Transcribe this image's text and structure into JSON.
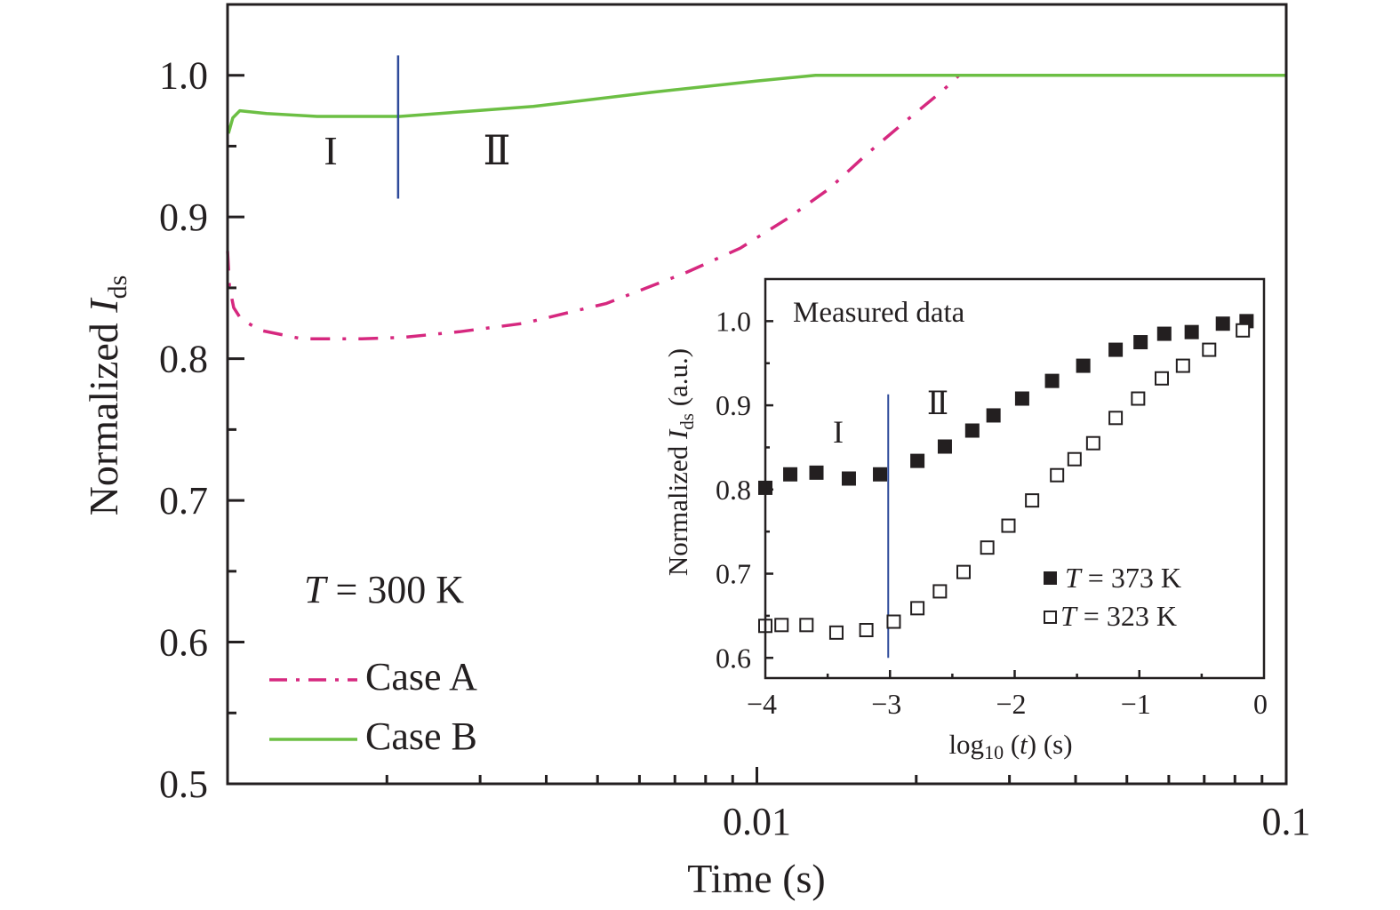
{
  "chart_data": [
    {
      "id": "main",
      "type": "line",
      "xscale": "log",
      "xlabel": "Time (s)",
      "ylabel": "Normalized I_ds",
      "ylabel_parts": {
        "main": "Normalized ",
        "italic": "I",
        "sub": "ds"
      },
      "xlim": [
        0.001,
        0.1
      ],
      "ylim": [
        0.5,
        1.05
      ],
      "x_ticks": [
        {
          "value": 0.001,
          "label": ""
        },
        {
          "value": 0.01,
          "label": "0.01"
        },
        {
          "value": 0.1,
          "label": "0.1"
        }
      ],
      "y_ticks": [
        {
          "value": 0.5,
          "label": "0.5"
        },
        {
          "value": 0.6,
          "label": "0.6"
        },
        {
          "value": 0.7,
          "label": "0.7"
        },
        {
          "value": 0.8,
          "label": "0.8"
        },
        {
          "value": 0.9,
          "label": "0.9"
        },
        {
          "value": 1.0,
          "label": "1.0"
        }
      ],
      "y_minor_ticks": [
        0.55,
        0.65,
        0.75,
        0.85,
        0.95
      ],
      "annotation": {
        "italic": "T",
        "text": " = 300 K"
      },
      "regions": [
        {
          "label": "I"
        },
        {
          "label": "Ⅱ"
        }
      ],
      "divider": {
        "x": 0.0021,
        "y_range": [
          0.913,
          1.014
        ],
        "color": "#2e4a9a"
      },
      "legend_position": "bottom-left",
      "series": [
        {
          "name": "Case A",
          "style": "dash-dot",
          "color": "#d6287f",
          "points": [
            [
              0.001,
              0.876
            ],
            [
              0.001008,
              0.851
            ],
            [
              0.001027,
              0.836
            ],
            [
              0.00106,
              0.828
            ],
            [
              0.001154,
              0.82
            ],
            [
              0.001383,
              0.814
            ],
            [
              0.001792,
              0.814
            ],
            [
              0.00214,
              0.815
            ],
            [
              0.00274,
              0.819
            ],
            [
              0.00363,
              0.825
            ],
            [
              0.0052,
              0.839
            ],
            [
              0.00737,
              0.861
            ],
            [
              0.0093,
              0.878
            ],
            [
              0.01143,
              0.899
            ],
            [
              0.0137,
              0.92
            ],
            [
              0.0162,
              0.945
            ],
            [
              0.01915,
              0.968
            ],
            [
              0.0224,
              0.989
            ],
            [
              0.0241,
              1.0
            ],
            [
              0.1,
              1.0
            ]
          ]
        },
        {
          "name": "Case B",
          "style": "solid",
          "color": "#6cbf44",
          "points": [
            [
              0.001004,
              0.959
            ],
            [
              0.001023,
              0.97
            ],
            [
              0.001055,
              0.975
            ],
            [
              0.001185,
              0.973
            ],
            [
              0.001477,
              0.971
            ],
            [
              0.002117,
              0.971
            ],
            [
              0.00378,
              0.978
            ],
            [
              0.00633,
              0.988
            ],
            [
              0.01,
              0.996
            ],
            [
              0.0129,
              1.0
            ],
            [
              0.1,
              1.0
            ]
          ]
        }
      ]
    },
    {
      "id": "inset",
      "type": "scatter",
      "title": "Measured data",
      "xlabel": "log10 (t) (s)",
      "xlabel_parts": {
        "pre": "log",
        "sub": "10",
        "mid": " (",
        "italic": "t",
        "post": ") (s)"
      },
      "ylabel": "Normalized I_ds (a.u.)",
      "ylabel_parts": {
        "main": "Normalized ",
        "italic": "I",
        "sub": "ds",
        "post": " (a.u.)"
      },
      "xlim": [
        -4,
        0
      ],
      "ylim": [
        0.576,
        1.05
      ],
      "x_ticks": [
        {
          "value": -4,
          "label": "−4"
        },
        {
          "value": -3,
          "label": "−3"
        },
        {
          "value": -2,
          "label": "−2"
        },
        {
          "value": -1,
          "label": "−1"
        },
        {
          "value": 0,
          "label": "0"
        }
      ],
      "x_minor_ticks": [
        -3.5,
        -2.5,
        -1.5,
        -0.5
      ],
      "y_ticks": [
        {
          "value": 0.6,
          "label": "0.6"
        },
        {
          "value": 0.7,
          "label": "0.7"
        },
        {
          "value": 0.8,
          "label": "0.8"
        },
        {
          "value": 0.9,
          "label": "0.9"
        },
        {
          "value": 1.0,
          "label": "1.0"
        }
      ],
      "y_minor_ticks": [
        0.65,
        0.75,
        0.85,
        0.95
      ],
      "regions": [
        {
          "label": "I"
        },
        {
          "label": "Ⅱ"
        }
      ],
      "divider": {
        "x": -3.0,
        "y_range": [
          0.6,
          0.913
        ],
        "color": "#2e4a9a"
      },
      "legend_position": "bottom-right",
      "series": [
        {
          "name": "T = 373 K",
          "legend_parts": {
            "italic": "T",
            "text": " = 373 K"
          },
          "marker": "filled-square",
          "color": "#231f20",
          "points": [
            [
              -4.0,
              0.802
            ],
            [
              -3.8,
              0.818
            ],
            [
              -3.59,
              0.82
            ],
            [
              -3.33,
              0.813
            ],
            [
              -3.08,
              0.818
            ],
            [
              -2.78,
              0.834
            ],
            [
              -2.56,
              0.851
            ],
            [
              -2.34,
              0.87
            ],
            [
              -2.17,
              0.888
            ],
            [
              -1.94,
              0.908
            ],
            [
              -1.7,
              0.929
            ],
            [
              -1.45,
              0.947
            ],
            [
              -1.19,
              0.966
            ],
            [
              -0.99,
              0.975
            ],
            [
              -0.8,
              0.985
            ],
            [
              -0.58,
              0.987
            ],
            [
              -0.33,
              0.997
            ],
            [
              -0.14,
              1.0
            ]
          ]
        },
        {
          "name": "T = 323 K",
          "legend_parts": {
            "italic": "T",
            "text": " = 323 K"
          },
          "marker": "open-square",
          "color": "#231f20",
          "points": [
            [
              -4.0,
              0.638
            ],
            [
              -3.87,
              0.639
            ],
            [
              -3.67,
              0.639
            ],
            [
              -3.43,
              0.63
            ],
            [
              -3.19,
              0.633
            ],
            [
              -2.97,
              0.643
            ],
            [
              -2.78,
              0.659
            ],
            [
              -2.6,
              0.679
            ],
            [
              -2.41,
              0.702
            ],
            [
              -2.22,
              0.731
            ],
            [
              -2.05,
              0.757
            ],
            [
              -1.86,
              0.787
            ],
            [
              -1.66,
              0.817
            ],
            [
              -1.52,
              0.836
            ],
            [
              -1.37,
              0.855
            ],
            [
              -1.19,
              0.885
            ],
            [
              -1.01,
              0.908
            ],
            [
              -0.82,
              0.932
            ],
            [
              -0.65,
              0.947
            ],
            [
              -0.44,
              0.966
            ],
            [
              -0.17,
              0.989
            ]
          ]
        }
      ]
    }
  ]
}
